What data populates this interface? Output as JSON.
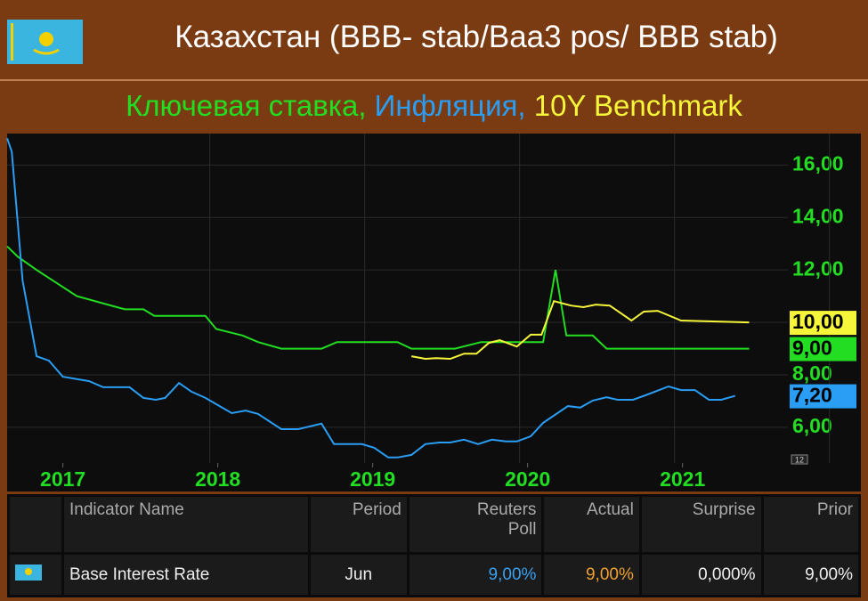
{
  "chart_data": {
    "type": "line",
    "title": "Казахстан (BBB- stab/Baa3 pos/ BBB stab)",
    "xlim": [
      2016.64,
      2021.68
    ],
    "xticks": [
      2017,
      2018,
      2019,
      2020,
      2021
    ],
    "ylim": [
      4.64,
      17.2
    ],
    "yticks": [
      {
        "value": 6,
        "label": "6,00"
      },
      {
        "value": 8,
        "label": "8,00"
      },
      {
        "value": 10,
        "label": "10,00"
      },
      {
        "value": 12,
        "label": "12,00"
      },
      {
        "value": 14,
        "label": "14,00"
      },
      {
        "value": 16,
        "label": "16,00"
      }
    ],
    "grid": true,
    "corner_label": "12",
    "series": [
      {
        "name": "Ключевая ставка,",
        "color": "#22dd22",
        "x": [
          2016.64,
          2016.71,
          2016.83,
          2017.09,
          2017.4,
          2017.52,
          2017.59,
          2017.92,
          2017.99,
          2018.16,
          2018.26,
          2018.41,
          2018.67,
          2018.77,
          2019.16,
          2019.25,
          2019.53,
          2019.7,
          2019.93,
          2020.1,
          2020.18,
          2020.25,
          2020.42,
          2020.51,
          2021.43
        ],
        "values": [
          12.9,
          12.5,
          12.0,
          11.0,
          10.5,
          10.5,
          10.25,
          10.25,
          9.75,
          9.5,
          9.25,
          9.0,
          9.0,
          9.25,
          9.25,
          9.0,
          9.0,
          9.25,
          9.25,
          9.25,
          12.0,
          9.5,
          9.5,
          9.0,
          9.0
        ],
        "value_labels": [
          null,
          null,
          null,
          null,
          null,
          null,
          null,
          null,
          null,
          null,
          null,
          null,
          null,
          null,
          null,
          null,
          null,
          null,
          null,
          null,
          null,
          null,
          null,
          null,
          "9,00"
        ]
      },
      {
        "name": "Инфляция,",
        "color": "#2a9df4",
        "x": [
          2016.64,
          2016.67,
          2016.74,
          2016.83,
          2016.91,
          2017.0,
          2017.17,
          2017.26,
          2017.43,
          2017.52,
          2017.6,
          2017.66,
          2017.75,
          2017.83,
          2017.92,
          2018.09,
          2018.18,
          2018.26,
          2018.41,
          2018.52,
          2018.67,
          2018.75,
          2018.93,
          2019.01,
          2019.1,
          2019.16,
          2019.25,
          2019.34,
          2019.43,
          2019.5,
          2019.59,
          2019.68,
          2019.77,
          2019.86,
          2019.93,
          2020.02,
          2020.1,
          2020.26,
          2020.34,
          2020.42,
          2020.51,
          2020.58,
          2020.68,
          2020.76,
          2020.91,
          2020.99,
          2021.08,
          2021.17,
          2021.25,
          2021.34
        ],
        "values": [
          17.02,
          16.51,
          11.59,
          8.71,
          8.54,
          7.93,
          7.76,
          7.53,
          7.53,
          7.12,
          7.05,
          7.12,
          7.69,
          7.36,
          7.12,
          6.54,
          6.64,
          6.51,
          5.93,
          5.93,
          6.14,
          5.36,
          5.36,
          5.22,
          4.85,
          4.85,
          4.95,
          5.36,
          5.42,
          5.42,
          5.53,
          5.36,
          5.53,
          5.46,
          5.46,
          5.66,
          6.17,
          6.81,
          6.75,
          7.02,
          7.15,
          7.05,
          7.05,
          7.22,
          7.56,
          7.42,
          7.42,
          7.05,
          7.05,
          7.2
        ],
        "value_labels": [
          null,
          null,
          null,
          null,
          null,
          null,
          null,
          null,
          null,
          null,
          null,
          null,
          null,
          null,
          null,
          null,
          null,
          null,
          null,
          null,
          null,
          null,
          null,
          null,
          null,
          null,
          null,
          null,
          null,
          null,
          null,
          null,
          null,
          null,
          null,
          null,
          null,
          null,
          null,
          null,
          null,
          null,
          null,
          null,
          null,
          null,
          null,
          null,
          null,
          "7,20"
        ]
      },
      {
        "name": "10Y Benchmark",
        "color": "#f5f53a",
        "x": [
          2019.25,
          2019.34,
          2019.41,
          2019.5,
          2019.59,
          2019.67,
          2019.75,
          2019.82,
          2019.93,
          2020.02,
          2020.09,
          2020.17,
          2020.28,
          2020.36,
          2020.44,
          2020.53,
          2020.67,
          2020.75,
          2020.84,
          2020.99,
          2021.43
        ],
        "values": [
          8.71,
          8.61,
          8.64,
          8.61,
          8.81,
          8.81,
          9.22,
          9.32,
          9.08,
          9.53,
          9.53,
          10.81,
          10.64,
          10.58,
          10.68,
          10.64,
          10.07,
          10.41,
          10.44,
          10.07,
          10.0
        ],
        "value_labels": [
          null,
          null,
          null,
          null,
          null,
          null,
          null,
          null,
          null,
          null,
          null,
          null,
          null,
          null,
          null,
          null,
          null,
          null,
          null,
          null,
          "10,00"
        ]
      }
    ]
  },
  "table": {
    "columns": [
      "Indicator Name",
      "Period",
      "Reuters Poll",
      "Actual",
      "Surprise",
      "Prior"
    ],
    "rows": [
      [
        "Base Interest Rate",
        "Jun",
        "9,00%",
        "9,00%",
        "0,000%",
        "9,00%"
      ]
    ]
  }
}
